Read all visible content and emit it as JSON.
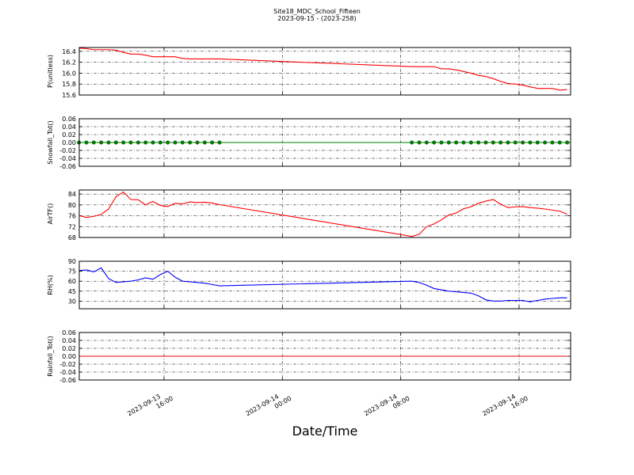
{
  "title": "Site18_MDC_School_Fifteen",
  "subtitle": "2023-09-15 - (2023-258)",
  "xlabel": "Date/Time",
  "xlim": [
    "2023-09-13 10:16",
    "2023-09-14 19:29"
  ],
  "xticks": [
    "2023-09-13 16:00",
    "2023-09-14 00:00",
    "2023-09-14 08:00",
    "2023-09-14 16:00"
  ],
  "x": [
    "2023-09-13 10:15",
    "2023-09-13 10:45",
    "2023-09-13 11:15",
    "2023-09-13 11:45",
    "2023-09-13 12:15",
    "2023-09-13 12:45",
    "2023-09-13 13:15",
    "2023-09-13 13:45",
    "2023-09-13 14:15",
    "2023-09-13 14:45",
    "2023-09-13 15:15",
    "2023-09-13 15:45",
    "2023-09-13 16:15",
    "2023-09-13 16:45",
    "2023-09-13 17:15",
    "2023-09-13 17:45",
    "2023-09-13 18:15",
    "2023-09-13 18:45",
    "2023-09-13 19:15",
    "2023-09-13 19:45",
    "2023-09-14 08:45",
    "2023-09-14 09:15",
    "2023-09-14 09:45",
    "2023-09-14 10:15",
    "2023-09-14 10:45",
    "2023-09-14 11:15",
    "2023-09-14 11:45",
    "2023-09-14 12:15",
    "2023-09-14 12:45",
    "2023-09-14 13:15",
    "2023-09-14 13:45",
    "2023-09-14 14:15",
    "2023-09-14 14:45",
    "2023-09-14 15:15",
    "2023-09-14 15:45",
    "2023-09-14 16:15",
    "2023-09-14 16:45",
    "2023-09-14 17:15",
    "2023-09-14 17:45",
    "2023-09-14 18:15",
    "2023-09-14 18:45",
    "2023-09-14 19:15"
  ],
  "chart_data": [
    {
      "type": "line",
      "ylabel": "P(unitless)",
      "color": "#ff0000",
      "grid": true,
      "ylim": [
        15.6,
        16.47
      ],
      "yticks": [
        15.6,
        15.8,
        {
          "value": 16,
          "label": "16.0"
        },
        16.2,
        16.4
      ],
      "values": [
        16.46,
        16.45,
        16.43,
        16.43,
        16.43,
        16.42,
        16.38,
        16.35,
        16.35,
        16.33,
        16.3,
        16.3,
        16.3,
        16.3,
        16.27,
        16.26,
        16.26,
        16.26,
        16.26,
        16.26,
        16.12,
        16.12,
        16.12,
        16.12,
        16.08,
        16.08,
        16.06,
        16.03,
        16.0,
        15.96,
        15.94,
        15.9,
        15.85,
        15.81,
        15.8,
        15.78,
        15.75,
        15.72,
        15.72,
        15.72,
        15.69,
        15.7
      ]
    },
    {
      "type": "line",
      "ylabel": "Snowfall_Tot()",
      "color": "#008000",
      "grid": true,
      "markers": true,
      "ylim": [
        -0.06,
        0.06
      ],
      "yticks": [
        -0.06,
        -0.04,
        -0.02,
        {
          "value": 0,
          "label": "0.00"
        },
        0.02,
        0.04,
        0.06
      ],
      "values": [
        0,
        0,
        0,
        0,
        0,
        0,
        0,
        0,
        0,
        0,
        0,
        0,
        0,
        0,
        0,
        0,
        0,
        0,
        0,
        0,
        0,
        0,
        0,
        0,
        0,
        0,
        0,
        0,
        0,
        0,
        0,
        0,
        0,
        0,
        0,
        0,
        0,
        0,
        0,
        0,
        0,
        0
      ]
    },
    {
      "type": "line",
      "ylabel": "AirTF()",
      "color": "#ff0000",
      "grid": true,
      "ylim": [
        68,
        85.5
      ],
      "yticks": [
        68,
        72,
        76,
        80,
        84
      ],
      "values": [
        76.1,
        75.4,
        75.8,
        76.5,
        78.5,
        83.0,
        84.8,
        82.0,
        81.9,
        80.0,
        81.3,
        79.8,
        79.4,
        80.6,
        80.4,
        81.1,
        80.9,
        81.0,
        80.7,
        80.1,
        68.4,
        69.2,
        72.0,
        73.0,
        74.5,
        76.3,
        77.0,
        78.6,
        79.3,
        80.6,
        81.4,
        82.0,
        80.3,
        79.0,
        79.3,
        79.4,
        79.0,
        78.8,
        78.5,
        78.1,
        77.7,
        76.6
      ]
    },
    {
      "type": "line",
      "ylabel": "RH(%)",
      "color": "#0000ff",
      "grid": true,
      "ylim": [
        18.5,
        90
      ],
      "yticks": [
        30,
        45,
        60,
        75,
        90
      ],
      "values": [
        76,
        77,
        74,
        80,
        64,
        58,
        59,
        60,
        62,
        65,
        63,
        70,
        75,
        66,
        60,
        59,
        58,
        57,
        55,
        53,
        60,
        58,
        54,
        49,
        47,
        45,
        44,
        43,
        42,
        38,
        32,
        30,
        30,
        31,
        31,
        31,
        29,
        31,
        33,
        34,
        35,
        35
      ]
    },
    {
      "type": "line",
      "ylabel": "Rainfall_Tot()",
      "color": "#ff0000",
      "grid": true,
      "ylim": [
        -0.06,
        0.06
      ],
      "yticks": [
        -0.06,
        -0.04,
        -0.02,
        {
          "value": 0,
          "label": "0.00"
        },
        0.02,
        0.04,
        0.06
      ],
      "values": [
        0,
        0,
        0,
        0,
        0,
        0,
        0,
        0,
        0,
        0,
        0,
        0,
        0,
        0,
        0,
        0,
        0,
        0,
        0,
        0,
        0,
        0,
        0,
        0,
        0,
        0,
        0,
        0,
        0,
        0,
        0,
        0,
        0,
        0,
        0,
        0,
        0,
        0,
        0,
        0,
        0,
        0
      ]
    }
  ]
}
